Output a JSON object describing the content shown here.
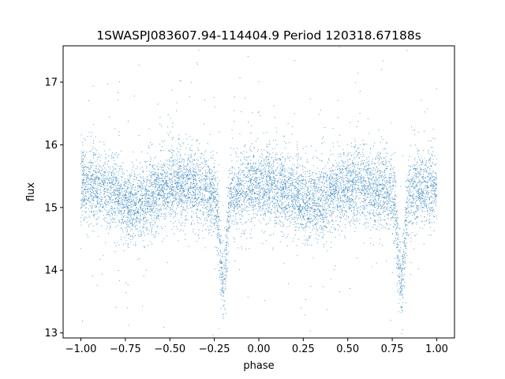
{
  "chart_data": {
    "type": "scatter",
    "title": "1SWASPJ083607.94-114404.9 Period 120318.67188s",
    "xlabel": "phase",
    "ylabel": "flux",
    "xlim": [
      -1.1,
      1.1
    ],
    "ylim": [
      12.92,
      17.58
    ],
    "xticks": [
      -1.0,
      -0.75,
      -0.5,
      -0.25,
      0.0,
      0.25,
      0.5,
      0.75,
      1.0
    ],
    "xtick_labels": [
      "−1.00",
      "−0.75",
      "−0.50",
      "−0.25",
      "0.00",
      "0.25",
      "0.50",
      "0.75",
      "1.00"
    ],
    "yticks": [
      13,
      14,
      15,
      16,
      17
    ],
    "ytick_labels": [
      "13",
      "14",
      "15",
      "16",
      "17"
    ],
    "grid": false,
    "legend": "none",
    "series": [
      {
        "color": "#1f77b4",
        "marker": "dot",
        "description_points": "eclipsing binary light curve folded over phase -1 to 1",
        "baseline_flux": 15.3,
        "primary_eclipse_phases": [
          -0.2,
          0.8
        ],
        "primary_eclipse_min_flux": 13.8,
        "secondary_dip_phases": [
          -0.7,
          0.3
        ],
        "secondary_dip_flux": 15.1,
        "scatter_sigma": 0.3,
        "phase_range": [
          -1.0,
          1.0
        ]
      }
    ]
  }
}
